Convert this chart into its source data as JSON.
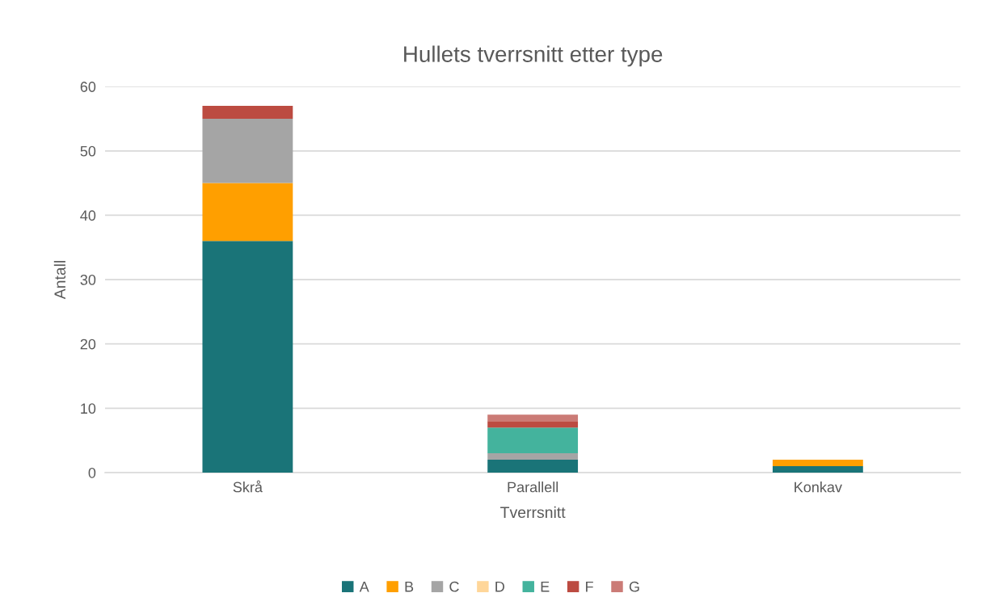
{
  "chart_data": {
    "type": "bar",
    "title": "Hullets tverrsnitt etter type",
    "xlabel": "Tverrsnitt",
    "ylabel": "Antall",
    "categories": [
      "Skrå",
      "Parallell",
      "Konkav"
    ],
    "series": [
      {
        "name": "A",
        "color": "#1a7478",
        "values": [
          36,
          2,
          1
        ]
      },
      {
        "name": "B",
        "color": "#ff9f00",
        "values": [
          9,
          0,
          1
        ]
      },
      {
        "name": "C",
        "color": "#a5a5a5",
        "values": [
          10,
          1,
          0
        ]
      },
      {
        "name": "D",
        "color": "#ffd699",
        "values": [
          0,
          0,
          0
        ]
      },
      {
        "name": "E",
        "color": "#44b39d",
        "values": [
          0,
          4,
          0
        ]
      },
      {
        "name": "F",
        "color": "#bc4b41",
        "values": [
          2,
          1,
          0
        ]
      },
      {
        "name": "G",
        "color": "#cb7b76",
        "values": [
          0,
          1,
          0
        ]
      }
    ],
    "stacked": true,
    "ylim": [
      0,
      60
    ],
    "yticks": [
      0,
      10,
      20,
      30,
      40,
      50,
      60
    ],
    "grid": "y",
    "legend": "bottom"
  }
}
